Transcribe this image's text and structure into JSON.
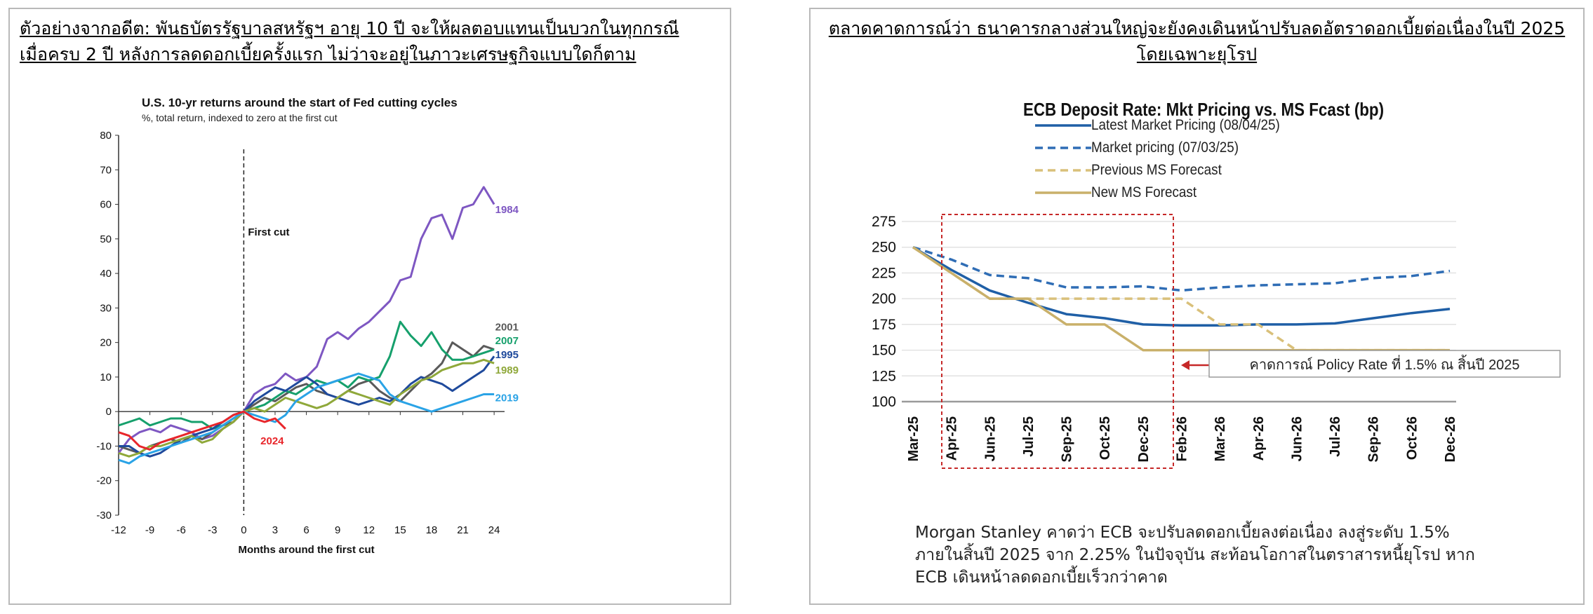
{
  "left_panel": {
    "heading_lines": [
      "ตัวอย่างจากอดีต: พันธบัตรรัฐบาลสหรัฐฯ อายุ 10 ปี จะให้ผลตอบแทนเป็นบวกในทุกกรณี",
      "เมื่อครบ 2 ปี หลังการลดดอกเบี้ยครั้งแรก ไม่ว่าจะอยู่ในภาวะเศรษฐกิจแบบใดก็ตาม"
    ]
  },
  "right_panel": {
    "heading_lines": [
      "ตลาดคาดการณ์ว่า ธนาคารกลางส่วนใหญ่จะยังคงเดินหน้าปรับลดอัตราดอกเบี้ยต่อเนื่องในปี 2025",
      "โดยเฉพาะยุโรป"
    ],
    "note_lines": [
      "Morgan Stanley คาดว่า ECB จะปรับลดดอกเบี้ยลงต่อเนื่อง ลงสู่ระดับ 1.5%",
      "ภายในสิ้นปี 2025 จาก 2.25% ในปัจจุบัน สะท้อนโอกาสในตราสารหนี้ยุโรป หาก",
      "ECB เดินหน้าลดดอกเบี้ยเร็วกว่าคาด"
    ]
  },
  "chart_data": [
    {
      "type": "line",
      "title": "U.S. 10-yr returns around the start of Fed cutting cycles",
      "subtitle": "%, total return, indexed to zero at the first cut",
      "xlabel": "Months around the first cut",
      "ylabel": "",
      "xlim": [
        -12,
        25
      ],
      "ylim": [
        -30,
        80
      ],
      "xticks": [
        -12,
        -9,
        -6,
        -3,
        0,
        3,
        6,
        9,
        12,
        15,
        18,
        21,
        24
      ],
      "yticks": [
        -30,
        -20,
        -10,
        0,
        10,
        20,
        30,
        40,
        50,
        60,
        70,
        80
      ],
      "grid": false,
      "annotation": {
        "text": "First cut",
        "x": 0,
        "y": 52
      },
      "x": [
        -12,
        -11,
        -10,
        -9,
        -8,
        -7,
        -6,
        -5,
        -4,
        -3,
        -2,
        -1,
        0,
        1,
        2,
        3,
        4,
        5,
        6,
        7,
        8,
        9,
        10,
        11,
        12,
        13,
        14,
        15,
        16,
        17,
        18,
        19,
        20,
        21,
        22,
        23,
        24
      ],
      "series": [
        {
          "name": "1984",
          "color": "#7e57c2",
          "values": [
            -12,
            -8,
            -6,
            -5,
            -6,
            -4,
            -5,
            -6,
            -8,
            -7,
            -5,
            -3,
            0,
            5,
            7,
            8,
            11,
            9,
            10,
            13,
            21,
            23,
            21,
            24,
            26,
            29,
            32,
            38,
            39,
            50,
            56,
            57,
            50,
            59,
            60,
            65,
            60
          ]
        },
        {
          "name": "2001",
          "color": "#5a5a5a",
          "values": [
            -10,
            -11,
            -12,
            -10,
            -9,
            -8,
            -9,
            -7,
            -8,
            -6,
            -4,
            -3,
            0,
            2,
            4,
            3,
            5,
            7,
            8,
            6,
            5,
            4,
            6,
            8,
            9,
            6,
            4,
            3,
            6,
            9,
            11,
            14,
            20,
            18,
            16,
            19,
            18
          ]
        },
        {
          "name": "2007",
          "color": "#16a06c",
          "values": [
            -4,
            -3,
            -2,
            -4,
            -3,
            -2,
            -2,
            -3,
            -3,
            -5,
            -4,
            -2,
            0,
            1,
            2,
            4,
            6,
            5,
            7,
            9,
            8,
            9,
            7,
            10,
            9,
            10,
            16,
            26,
            22,
            19,
            23,
            18,
            15,
            15,
            16,
            17,
            18
          ]
        },
        {
          "name": "1995",
          "color": "#1f4a9c",
          "values": [
            -10,
            -10,
            -12,
            -13,
            -12,
            -10,
            -8,
            -7,
            -6,
            -5,
            -3,
            -1,
            0,
            3,
            5,
            7,
            6,
            8,
            10,
            8,
            5,
            4,
            3,
            2,
            3,
            4,
            3,
            5,
            8,
            10,
            9,
            8,
            6,
            8,
            10,
            12,
            16
          ]
        },
        {
          "name": "1989",
          "color": "#8fa83a",
          "values": [
            -12,
            -13,
            -12,
            -10,
            -10,
            -9,
            -8,
            -7,
            -9,
            -8,
            -5,
            -3,
            0,
            1,
            0,
            2,
            4,
            3,
            2,
            1,
            2,
            4,
            6,
            5,
            4,
            3,
            2,
            5,
            7,
            9,
            10,
            12,
            13,
            14,
            14,
            15,
            14
          ]
        },
        {
          "name": "2019",
          "color": "#2aa3e6",
          "values": [
            -14,
            -15,
            -13,
            -12,
            -11,
            -10,
            -9,
            -8,
            -7,
            -6,
            -4,
            -2,
            0,
            -1,
            -2,
            -3,
            -1,
            3,
            5,
            7,
            8,
            9,
            10,
            11,
            10,
            9,
            5,
            3,
            2,
            1,
            0,
            1,
            2,
            3,
            4,
            5,
            5
          ]
        },
        {
          "name": "2024",
          "color": "#e8262b",
          "values": [
            -6,
            -7,
            -10,
            -11,
            -9,
            -8,
            -7,
            -6,
            -5,
            -4,
            -3,
            -1,
            0,
            -2,
            -3,
            -2,
            -5,
            null,
            null,
            null,
            null,
            null,
            null,
            null,
            null,
            null,
            null,
            null,
            null,
            null,
            null,
            null,
            null,
            null,
            null,
            null,
            null
          ]
        }
      ]
    },
    {
      "type": "line",
      "title": "ECB Deposit Rate: Mkt Pricing vs. MS Fcast (bp)",
      "xlabel": "",
      "ylabel": "",
      "ylim": [
        100,
        275
      ],
      "yticks": [
        100,
        125,
        150,
        175,
        200,
        225,
        250,
        275
      ],
      "grid": true,
      "legend": "top",
      "categories": [
        "Mar-25",
        "Apr-25",
        "Jun-25",
        "Jul-25",
        "Sep-25",
        "Oct-25",
        "Dec-25",
        "Feb-26",
        "Mar-26",
        "Apr-26",
        "Jun-26",
        "Jul-26",
        "Sep-26",
        "Oct-26",
        "Dec-26"
      ],
      "series": [
        {
          "name": "Latest Market Pricing (08/04/25)",
          "color": "#1f5fa6",
          "style": "solid",
          "values": [
            250,
            228,
            208,
            196,
            185,
            181,
            175,
            174,
            174,
            175,
            175,
            176,
            181,
            186,
            190
          ]
        },
        {
          "name": "Market pricing (07/03/25)",
          "color": "#2f6db5",
          "style": "dashed",
          "values": [
            250,
            238,
            223,
            220,
            211,
            211,
            212,
            208,
            211,
            213,
            214,
            215,
            220,
            222,
            227
          ]
        },
        {
          "name": "Previous MS Forecast",
          "color": "#d9c07a",
          "style": "dashed",
          "values": [
            250,
            225,
            200,
            200,
            200,
            200,
            200,
            200,
            175,
            175,
            150,
            150,
            150,
            150,
            150
          ]
        },
        {
          "name": "New MS Forecast",
          "color": "#c9b06a",
          "style": "solid",
          "values": [
            250,
            225,
            200,
            200,
            175,
            175,
            150,
            150,
            150,
            150,
            150,
            150,
            150,
            150,
            150
          ]
        }
      ],
      "callout": "คาดการณ์ Policy Rate ที่ 1.5% ณ สิ้นปี 2025"
    }
  ]
}
